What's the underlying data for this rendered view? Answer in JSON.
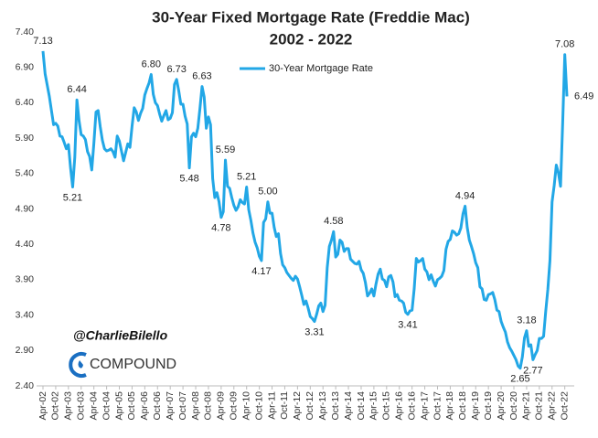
{
  "chart_data": {
    "type": "line",
    "title": "30-Year Fixed Mortgage Rate (Freddie Mac)",
    "subtitle": "2002 - 2022",
    "legend": "top",
    "grid": false,
    "ylim": [
      2.4,
      7.4
    ],
    "yticks": [
      {
        "value": 2.4,
        "label": "2.40"
      },
      {
        "value": 2.9,
        "label": "2.90"
      },
      {
        "value": 3.4,
        "label": "3.40"
      },
      {
        "value": 3.9,
        "label": "3.90"
      },
      {
        "value": 4.4,
        "label": "4.40"
      },
      {
        "value": 4.9,
        "label": "4.90"
      },
      {
        "value": 5.4,
        "label": "5.40"
      },
      {
        "value": 5.9,
        "label": "5.90"
      },
      {
        "value": 6.4,
        "label": "6.40"
      },
      {
        "value": 6.9,
        "label": "6.90"
      },
      {
        "value": 7.4,
        "label": "7.40"
      }
    ],
    "categories": [
      "Apr-02",
      null,
      null,
      null,
      null,
      null,
      "Oct-02",
      null,
      null,
      null,
      null,
      null,
      "Apr-03",
      null,
      null,
      null,
      null,
      null,
      "Oct-03",
      null,
      null,
      null,
      null,
      null,
      "Apr-04",
      null,
      null,
      null,
      null,
      null,
      "Oct-04",
      null,
      null,
      null,
      null,
      null,
      "Apr-05",
      null,
      null,
      null,
      null,
      null,
      "Oct-05",
      null,
      null,
      null,
      null,
      null,
      "Apr-06",
      null,
      null,
      null,
      null,
      null,
      "Oct-06",
      null,
      null,
      null,
      null,
      null,
      "Apr-07",
      null,
      null,
      null,
      null,
      null,
      "Oct-07",
      null,
      null,
      null,
      null,
      null,
      "Apr-08",
      null,
      null,
      null,
      null,
      null,
      "Oct-08",
      null,
      null,
      null,
      null,
      null,
      "Apr-09",
      null,
      null,
      null,
      null,
      null,
      "Oct-09",
      null,
      null,
      null,
      null,
      null,
      "Apr-10",
      null,
      null,
      null,
      null,
      null,
      "Oct-10",
      null,
      null,
      null,
      null,
      null,
      "Apr-11",
      null,
      null,
      null,
      null,
      null,
      "Oct-11",
      null,
      null,
      null,
      null,
      null,
      "Apr-12",
      null,
      null,
      null,
      null,
      null,
      "Oct-12",
      null,
      null,
      null,
      null,
      null,
      "Apr-13",
      null,
      null,
      null,
      null,
      null,
      "Oct-13",
      null,
      null,
      null,
      null,
      null,
      "Apr-14",
      null,
      null,
      null,
      null,
      null,
      "Oct-14",
      null,
      null,
      null,
      null,
      null,
      "Apr-15",
      null,
      null,
      null,
      null,
      null,
      "Oct-15",
      null,
      null,
      null,
      null,
      null,
      "Apr-16",
      null,
      null,
      null,
      null,
      null,
      "Oct-16",
      null,
      null,
      null,
      null,
      null,
      "Apr-17",
      null,
      null,
      null,
      null,
      null,
      "Oct-17",
      null,
      null,
      null,
      null,
      null,
      "Apr-18",
      null,
      null,
      null,
      null,
      null,
      "Oct-18",
      null,
      null,
      null,
      null,
      null,
      "Apr-19",
      null,
      null,
      null,
      null,
      null,
      "Oct-19",
      null,
      null,
      null,
      null,
      null,
      "Apr-20",
      null,
      null,
      null,
      null,
      null,
      "Oct-20",
      null,
      null,
      null,
      null,
      null,
      "Apr-21",
      null,
      null,
      null,
      null,
      null,
      "Oct-21",
      null,
      null,
      null,
      null,
      null,
      "Apr-22",
      null,
      null,
      null,
      null,
      null,
      "Oct-22",
      null
    ],
    "series": [
      {
        "name": "30-Year Mortgage Rate",
        "color": "#22a7e6",
        "values": [
          7.13,
          6.81,
          6.65,
          6.49,
          6.29,
          6.09,
          6.11,
          6.07,
          5.93,
          5.92,
          5.84,
          5.75,
          5.81,
          5.48,
          5.21,
          5.63,
          6.44,
          6.15,
          5.95,
          5.93,
          5.88,
          5.71,
          5.64,
          5.45,
          5.83,
          6.27,
          6.29,
          6.06,
          5.87,
          5.75,
          5.72,
          5.73,
          5.75,
          5.71,
          5.63,
          5.93,
          5.86,
          5.72,
          5.58,
          5.7,
          5.82,
          5.77,
          6.07,
          6.33,
          6.27,
          6.15,
          6.25,
          6.32,
          6.51,
          6.6,
          6.68,
          6.8,
          6.52,
          6.4,
          6.36,
          6.24,
          6.14,
          6.22,
          6.29,
          6.16,
          6.18,
          6.26,
          6.66,
          6.73,
          6.57,
          6.38,
          6.38,
          6.21,
          6.1,
          5.48,
          5.92,
          5.97,
          5.92,
          6.04,
          6.32,
          6.63,
          6.48,
          6.04,
          6.2,
          6.09,
          5.33,
          5.06,
          5.13,
          5.0,
          4.78,
          4.86,
          5.59,
          5.22,
          5.19,
          5.06,
          4.95,
          4.88,
          4.93,
          5.03,
          4.99,
          4.97,
          5.21,
          4.89,
          4.74,
          4.56,
          4.43,
          4.35,
          4.23,
          4.17,
          4.71,
          4.76,
          5.0,
          4.84,
          4.84,
          4.64,
          4.51,
          4.55,
          4.27,
          4.11,
          4.07,
          4.0,
          3.96,
          3.92,
          3.89,
          3.95,
          3.91,
          3.8,
          3.68,
          3.55,
          3.6,
          3.5,
          3.38,
          3.35,
          3.31,
          3.41,
          3.53,
          3.57,
          3.45,
          3.54,
          4.07,
          4.37,
          4.46,
          4.58,
          4.22,
          4.26,
          4.46,
          4.43,
          4.3,
          4.34,
          4.34,
          4.19,
          4.16,
          4.13,
          4.12,
          4.16,
          4.04,
          3.99,
          3.86,
          3.67,
          3.71,
          3.77,
          3.67,
          3.84,
          3.98,
          4.05,
          3.91,
          3.89,
          3.8,
          3.94,
          3.96,
          3.87,
          3.66,
          3.69,
          3.61,
          3.6,
          3.57,
          3.44,
          3.41,
          3.46,
          3.47,
          3.77,
          4.2,
          4.15,
          4.17,
          4.2,
          4.05,
          4.01,
          3.9,
          3.97,
          3.88,
          3.81,
          3.9,
          3.92,
          3.95,
          4.03,
          4.33,
          4.44,
          4.47,
          4.59,
          4.57,
          4.53,
          4.55,
          4.63,
          4.83,
          4.94,
          4.64,
          4.46,
          4.37,
          4.27,
          4.14,
          4.07,
          3.8,
          3.77,
          3.62,
          3.61,
          3.69,
          3.7,
          3.72,
          3.62,
          3.47,
          3.45,
          3.31,
          3.23,
          3.16,
          3.02,
          2.94,
          2.89,
          2.83,
          2.77,
          2.68,
          2.65,
          2.81,
          3.08,
          3.18,
          2.96,
          2.98,
          2.77,
          2.84,
          2.9,
          3.07,
          3.07,
          3.1,
          3.45,
          3.76,
          4.17,
          5.0,
          5.23,
          5.52,
          5.41,
          5.22,
          6.11,
          7.08,
          6.49
        ],
        "value_labels": [
          "7.13",
          null,
          null,
          null,
          null,
          null,
          null,
          null,
          null,
          null,
          null,
          null,
          null,
          null,
          "5.21",
          null,
          "6.44",
          null,
          null,
          null,
          null,
          null,
          null,
          null,
          null,
          null,
          null,
          null,
          null,
          null,
          null,
          null,
          null,
          null,
          null,
          null,
          null,
          null,
          null,
          null,
          null,
          null,
          null,
          null,
          null,
          null,
          null,
          null,
          null,
          null,
          null,
          "6.80",
          null,
          null,
          null,
          null,
          null,
          null,
          null,
          null,
          null,
          null,
          null,
          "6.73",
          null,
          null,
          null,
          null,
          null,
          "5.48",
          null,
          null,
          null,
          null,
          null,
          "6.63",
          null,
          null,
          null,
          null,
          null,
          null,
          null,
          null,
          "4.78",
          null,
          "5.59",
          null,
          null,
          null,
          null,
          null,
          null,
          null,
          null,
          null,
          "5.21",
          null,
          null,
          null,
          null,
          null,
          null,
          "4.17",
          null,
          null,
          "5.00",
          null,
          null,
          null,
          null,
          null,
          null,
          null,
          null,
          null,
          null,
          null,
          null,
          null,
          null,
          null,
          null,
          null,
          null,
          null,
          null,
          null,
          "3.31",
          null,
          null,
          null,
          null,
          null,
          null,
          null,
          null,
          "4.58",
          null,
          null,
          null,
          null,
          null,
          null,
          null,
          null,
          null,
          null,
          null,
          null,
          null,
          null,
          null,
          null,
          null,
          null,
          null,
          null,
          null,
          null,
          null,
          null,
          null,
          null,
          null,
          null,
          null,
          null,
          null,
          null,
          null,
          null,
          "3.41",
          null,
          null,
          null,
          null,
          null,
          null,
          null,
          null,
          null,
          null,
          null,
          null,
          null,
          null,
          null,
          null,
          null,
          null,
          null,
          null,
          null,
          null,
          null,
          null,
          null,
          null,
          "4.94",
          null,
          null,
          null,
          null,
          null,
          null,
          null,
          null,
          null,
          null,
          null,
          null,
          null,
          null,
          null,
          null,
          null,
          null,
          null,
          null,
          null,
          null,
          null,
          null,
          null,
          "2.65",
          null,
          null,
          "3.18",
          null,
          null,
          "2.77",
          null,
          null,
          null,
          null,
          null,
          null,
          null,
          null,
          null,
          null,
          null,
          null,
          null,
          null,
          "7.08",
          "6.49"
        ]
      }
    ],
    "watermark": {
      "handle": "@CharlieBilello",
      "brand": "COMPOUND"
    }
  }
}
